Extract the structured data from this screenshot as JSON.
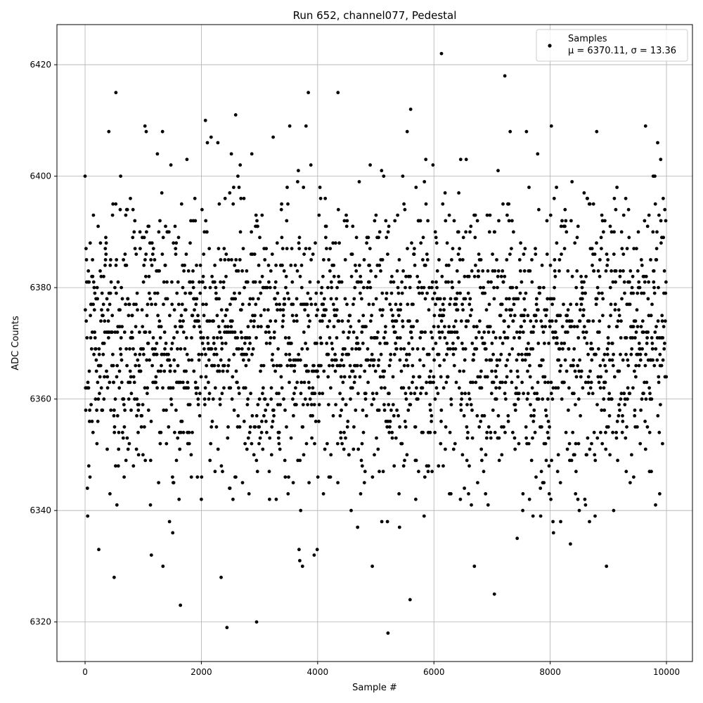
{
  "chart_data": {
    "type": "scatter",
    "title": "Run 652, channel077, Pedestal",
    "xlabel": "Sample #",
    "ylabel": "ADC Counts",
    "xlim": [
      -484,
      10447
    ],
    "ylim": [
      6312.9,
      6427.2
    ],
    "xticks": [
      0,
      2000,
      4000,
      6000,
      8000,
      10000
    ],
    "yticks": [
      6320,
      6340,
      6360,
      6380,
      6400,
      6420
    ],
    "grid": true,
    "legend": {
      "placement": "top-right",
      "series_name": "Samples",
      "stats_label": "μ = 6370.11, σ = 13.36"
    },
    "series": [
      {
        "name": "Samples",
        "color": "#000000",
        "n_samples": 10000,
        "mean": 6370.11,
        "sigma": 13.36,
        "outlier_points": [
          [
            6130,
            6422
          ],
          [
            7220,
            6418
          ],
          [
            530,
            6415
          ],
          [
            3840,
            6415
          ],
          [
            4350,
            6415
          ],
          [
            5600,
            6412
          ],
          [
            2590,
            6411
          ],
          [
            2070,
            6410
          ],
          [
            8020,
            6409
          ],
          [
            9640,
            6409
          ],
          [
            3520,
            6409
          ],
          [
            1030,
            6409
          ],
          [
            3800,
            6409
          ],
          [
            5210,
            6318
          ],
          [
            2950,
            6320
          ],
          [
            2440,
            6319
          ],
          [
            1640,
            6323
          ],
          [
            7040,
            6325
          ],
          [
            5590,
            6324
          ],
          [
            500,
            6328
          ],
          [
            2340,
            6328
          ]
        ]
      }
    ]
  }
}
